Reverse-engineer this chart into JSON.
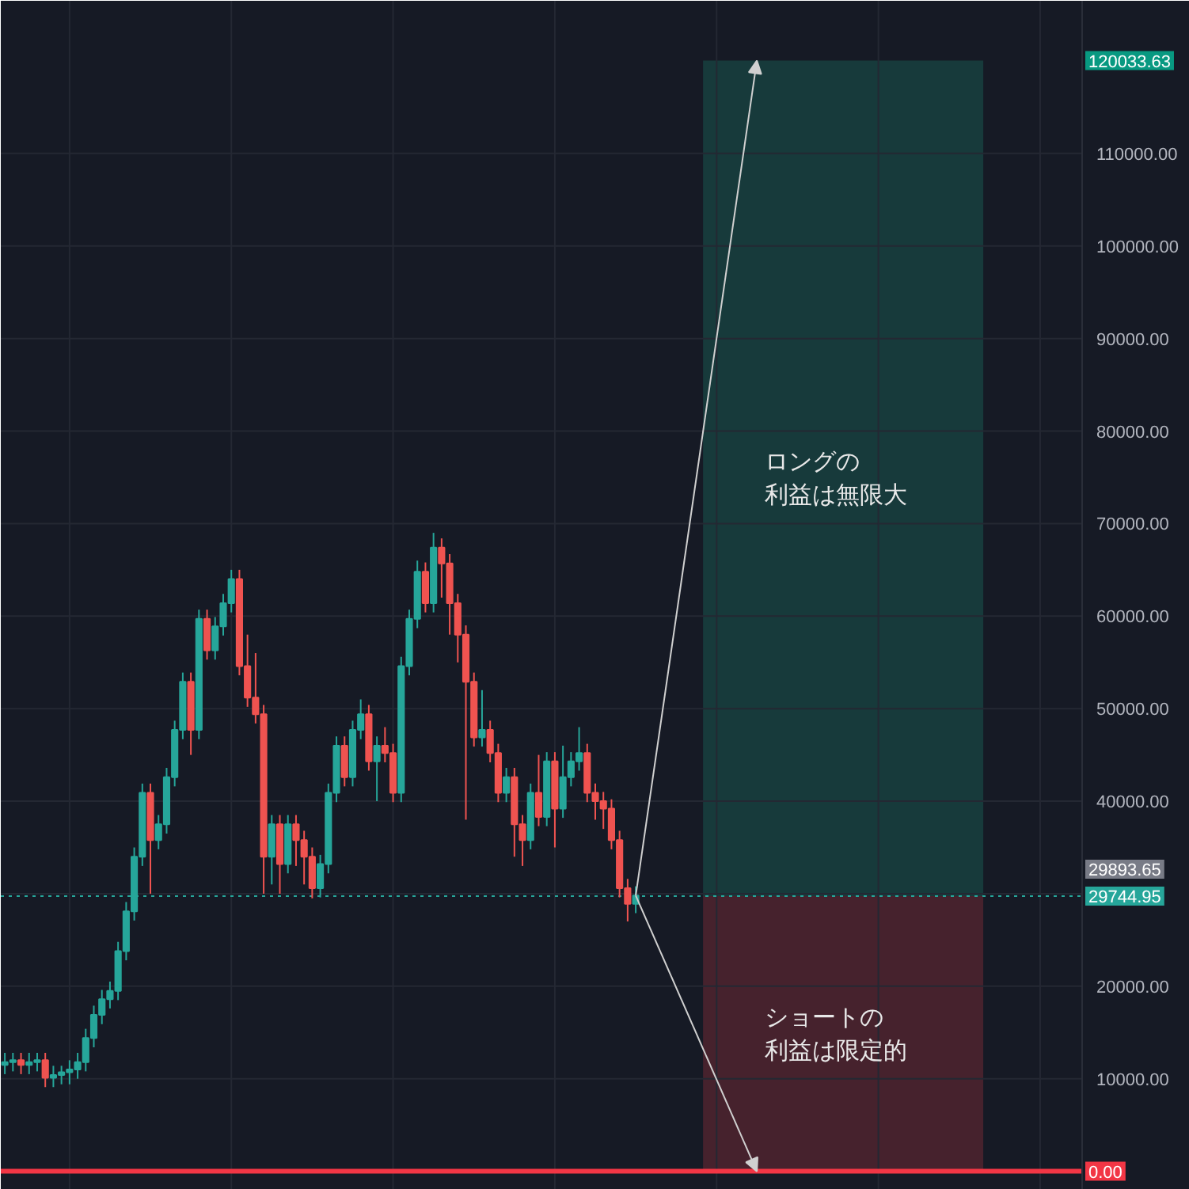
{
  "chart_data": {
    "type": "candlestick",
    "categories": [
      null,
      null,
      null,
      null,
      null,
      null,
      null,
      null,
      null,
      null,
      null,
      null,
      null,
      null,
      null,
      null,
      null,
      null,
      null,
      null,
      null,
      null,
      null,
      null,
      null,
      null,
      null,
      null,
      null,
      null,
      null,
      null,
      null,
      null,
      null,
      null,
      null,
      null,
      null,
      null,
      null,
      null,
      null,
      null,
      null,
      null,
      null,
      null,
      null,
      null,
      null,
      null,
      null,
      null,
      null,
      null,
      null,
      null,
      null,
      null,
      null,
      null,
      null,
      null,
      null,
      null,
      null,
      null,
      null,
      null,
      null,
      null,
      null,
      null,
      null,
      null,
      null,
      null,
      null,
      null,
      null,
      null,
      null,
      null,
      null,
      null,
      null,
      null,
      null,
      null,
      null,
      null,
      null,
      null,
      null,
      null,
      null,
      null,
      null,
      null,
      null,
      null,
      null,
      null,
      null,
      null,
      null,
      null,
      null,
      null,
      null,
      null,
      null,
      null,
      null,
      null,
      null,
      null,
      null,
      null,
      null,
      null,
      null,
      null,
      null,
      null,
      null,
      null,
      null,
      null,
      null,
      null,
      null,
      null,
      null,
      null,
      null,
      null,
      null,
      null,
      null,
      null,
      null,
      null,
      null,
      null,
      null
    ],
    "ohlc": [
      [
        11500,
        12800,
        10500,
        11800
      ],
      [
        11800,
        12800,
        10800,
        12000
      ],
      [
        12000,
        12800,
        10500,
        11500
      ],
      [
        11500,
        12800,
        10500,
        11800
      ],
      [
        11800,
        12800,
        10800,
        12000
      ],
      [
        12000,
        12800,
        9100,
        10100
      ],
      [
        10100,
        11400,
        9100,
        10400
      ],
      [
        10400,
        11400,
        9400,
        10700
      ],
      [
        10700,
        12000,
        9400,
        11000
      ],
      [
        11000,
        12800,
        10000,
        11800
      ],
      [
        11800,
        15400,
        10800,
        14400
      ],
      [
        14400,
        17900,
        13400,
        16900
      ],
      [
        16900,
        19600,
        15900,
        18600
      ],
      [
        18600,
        20500,
        17600,
        19500
      ],
      [
        19500,
        24800,
        18500,
        23800
      ],
      [
        23800,
        29100,
        22800,
        28100
      ],
      [
        28100,
        35000,
        27100,
        34000
      ],
      [
        34000,
        41900,
        33000,
        40900
      ],
      [
        40900,
        41900,
        30000,
        35800
      ],
      [
        35800,
        38500,
        34800,
        37500
      ],
      [
        37500,
        43600,
        36500,
        42600
      ],
      [
        42600,
        48700,
        41600,
        47700
      ],
      [
        47700,
        53900,
        46700,
        52900
      ],
      [
        52900,
        53900,
        45000,
        47700
      ],
      [
        47700,
        60700,
        46700,
        59700
      ],
      [
        59700,
        60700,
        55300,
        56300
      ],
      [
        56300,
        59900,
        55300,
        58900
      ],
      [
        58900,
        62400,
        57900,
        61400
      ],
      [
        61400,
        65000,
        60400,
        64000
      ],
      [
        64000,
        65000,
        53600,
        54600
      ],
      [
        54600,
        58000,
        50200,
        51200
      ],
      [
        51200,
        56000,
        48400,
        49400
      ],
      [
        49400,
        50400,
        30000,
        34000
      ],
      [
        34000,
        38500,
        31000,
        37500
      ],
      [
        37500,
        38500,
        30000,
        33200
      ],
      [
        33200,
        38500,
        32200,
        37500
      ],
      [
        37500,
        38500,
        33000,
        35800
      ],
      [
        35800,
        36800,
        31000,
        34000
      ],
      [
        34000,
        35000,
        29500,
        30600
      ],
      [
        30600,
        34200,
        29600,
        33200
      ],
      [
        33200,
        41900,
        32200,
        40900
      ],
      [
        40900,
        47000,
        39900,
        46000
      ],
      [
        46000,
        47000,
        41600,
        42600
      ],
      [
        42600,
        48700,
        41600,
        47700
      ],
      [
        47700,
        51000,
        46700,
        49400
      ],
      [
        49400,
        50400,
        43300,
        44300
      ],
      [
        44300,
        47000,
        40000,
        46000
      ],
      [
        46000,
        48000,
        44200,
        45200
      ],
      [
        45200,
        46200,
        39900,
        40900
      ],
      [
        40900,
        55600,
        39900,
        54600
      ],
      [
        54600,
        60700,
        53600,
        59700
      ],
      [
        59700,
        66000,
        58700,
        64800
      ],
      [
        64800,
        65800,
        60400,
        61400
      ],
      [
        61400,
        69000,
        60400,
        67400
      ],
      [
        67400,
        68400,
        62000,
        65700
      ],
      [
        65700,
        66700,
        58000,
        61400
      ],
      [
        61400,
        62400,
        55000,
        58000
      ],
      [
        58000,
        59000,
        38000,
        52900
      ],
      [
        52900,
        53900,
        45900,
        46900
      ],
      [
        46900,
        52000,
        45900,
        47700
      ],
      [
        47700,
        48700,
        44200,
        45200
      ],
      [
        45200,
        46200,
        39900,
        40900
      ],
      [
        40900,
        43600,
        39900,
        42600
      ],
      [
        42600,
        43600,
        34000,
        37500
      ],
      [
        37500,
        38500,
        33000,
        35800
      ],
      [
        35800,
        41900,
        34800,
        40900
      ],
      [
        40900,
        45000,
        37300,
        38300
      ],
      [
        38300,
        45300,
        37300,
        44300
      ],
      [
        44300,
        45300,
        35000,
        39200
      ],
      [
        39200,
        46000,
        38200,
        42600
      ],
      [
        42600,
        45300,
        41600,
        44300
      ],
      [
        44300,
        48000,
        43300,
        45200
      ],
      [
        45200,
        46200,
        39900,
        40900
      ],
      [
        40900,
        41900,
        38000,
        40000
      ],
      [
        40000,
        41000,
        37000,
        39200
      ],
      [
        39200,
        40200,
        34800,
        35800
      ],
      [
        35800,
        36800,
        29600,
        30600
      ],
      [
        30600,
        31600,
        27000,
        28900
      ],
      [
        28900,
        30800,
        27900,
        29800
      ],
      null,
      null,
      null,
      null,
      null,
      null,
      null,
      null,
      null,
      null,
      null,
      null,
      null,
      null,
      null,
      null,
      null,
      null,
      null,
      null,
      null,
      null,
      null,
      null,
      null,
      null,
      null,
      null,
      null,
      null,
      null,
      null,
      null,
      null,
      null,
      null,
      null,
      null,
      null,
      null,
      null,
      null,
      null,
      null,
      null,
      null,
      null,
      null,
      null,
      null,
      null,
      null,
      null,
      null,
      null,
      null,
      null,
      null,
      null,
      null,
      null,
      null,
      null,
      null,
      null,
      null,
      null,
      null
    ],
    "colors": [
      "#26a69a",
      "#26a69a",
      "#ef5350",
      "#26a69a",
      "#26a69a",
      "#ef5350",
      "#26a69a",
      "#26a69a",
      "#26a69a",
      "#26a69a",
      "#26a69a",
      "#26a69a",
      "#26a69a",
      "#26a69a",
      "#26a69a",
      "#26a69a",
      "#26a69a",
      "#26a69a",
      "#ef5350",
      "#26a69a",
      "#26a69a",
      "#26a69a",
      "#26a69a",
      "#ef5350",
      "#26a69a",
      "#ef5350",
      "#26a69a",
      "#26a69a",
      "#26a69a",
      "#ef5350",
      "#ef5350",
      "#ef5350",
      "#ef5350",
      "#26a69a",
      "#ef5350",
      "#26a69a",
      "#ef5350",
      "#ef5350",
      "#ef5350",
      "#26a69a",
      "#26a69a",
      "#26a69a",
      "#ef5350",
      "#26a69a",
      "#26a69a",
      "#ef5350",
      "#26a69a",
      "#ef5350",
      "#ef5350",
      "#26a69a",
      "#26a69a",
      "#26a69a",
      "#ef5350",
      "#26a69a",
      "#ef5350",
      "#ef5350",
      "#ef5350",
      "#ef5350",
      "#ef5350",
      "#26a69a",
      "#ef5350",
      "#ef5350",
      "#26a69a",
      "#ef5350",
      "#ef5350",
      "#26a69a",
      "#ef5350",
      "#26a69a",
      "#ef5350",
      "#26a69a",
      "#26a69a",
      "#26a69a",
      "#ef5350",
      "#ef5350",
      "#ef5350",
      "#ef5350",
      "#ef5350",
      "#ef5350",
      "#26a69a",
      null,
      null,
      null,
      null,
      null,
      null,
      null,
      null,
      null,
      null,
      null,
      null,
      null,
      null,
      null,
      null,
      null,
      null,
      null,
      null,
      null,
      null,
      null,
      null,
      null,
      null,
      null,
      null,
      null,
      null,
      null,
      null,
      null,
      null,
      null,
      null,
      null,
      null,
      null,
      null,
      null,
      null,
      null,
      null,
      null,
      null,
      null,
      null,
      null,
      null,
      null,
      null,
      null,
      null,
      null,
      null,
      null,
      null,
      null,
      null,
      null,
      null,
      null,
      null,
      null,
      null,
      null,
      null
    ],
    "ylim": [
      -2000,
      126500
    ],
    "yticks": [
      {
        "value": 10000,
        "label": "10000.00"
      },
      {
        "value": 20000,
        "label": "20000.00"
      },
      {
        "value": 30000,
        "label": null
      },
      {
        "value": 40000,
        "label": "40000.00"
      },
      {
        "value": 50000,
        "label": "50000.00"
      },
      {
        "value": 60000,
        "label": "60000.00"
      },
      {
        "value": 70000,
        "label": "70000.00"
      },
      {
        "value": 80000,
        "label": "80000.00"
      },
      {
        "value": 90000,
        "label": "90000.00"
      },
      {
        "value": 100000,
        "label": "100000.00"
      },
      {
        "value": 110000,
        "label": "110000.00"
      }
    ],
    "grid": true,
    "bands": [
      {
        "axis": "y",
        "from": 29744.95,
        "to": 120033.63,
        "label": "ロングの利益は無限大",
        "color": "#173a3b"
      },
      {
        "axis": "y",
        "from": 0,
        "to": 29744.95,
        "label": "ショートの利益は限定的",
        "color": "#46222d"
      }
    ],
    "ref_lines": [
      {
        "axis": "y",
        "value": 0,
        "label": "0.00",
        "color": "#f23645",
        "line_style": "solid"
      },
      {
        "axis": "y",
        "value": 29744.95,
        "label": "29744.95",
        "color": "#26a69a",
        "line_style": "dotted"
      }
    ],
    "annotations": [
      "120033.63",
      "29893.65"
    ]
  }
}
